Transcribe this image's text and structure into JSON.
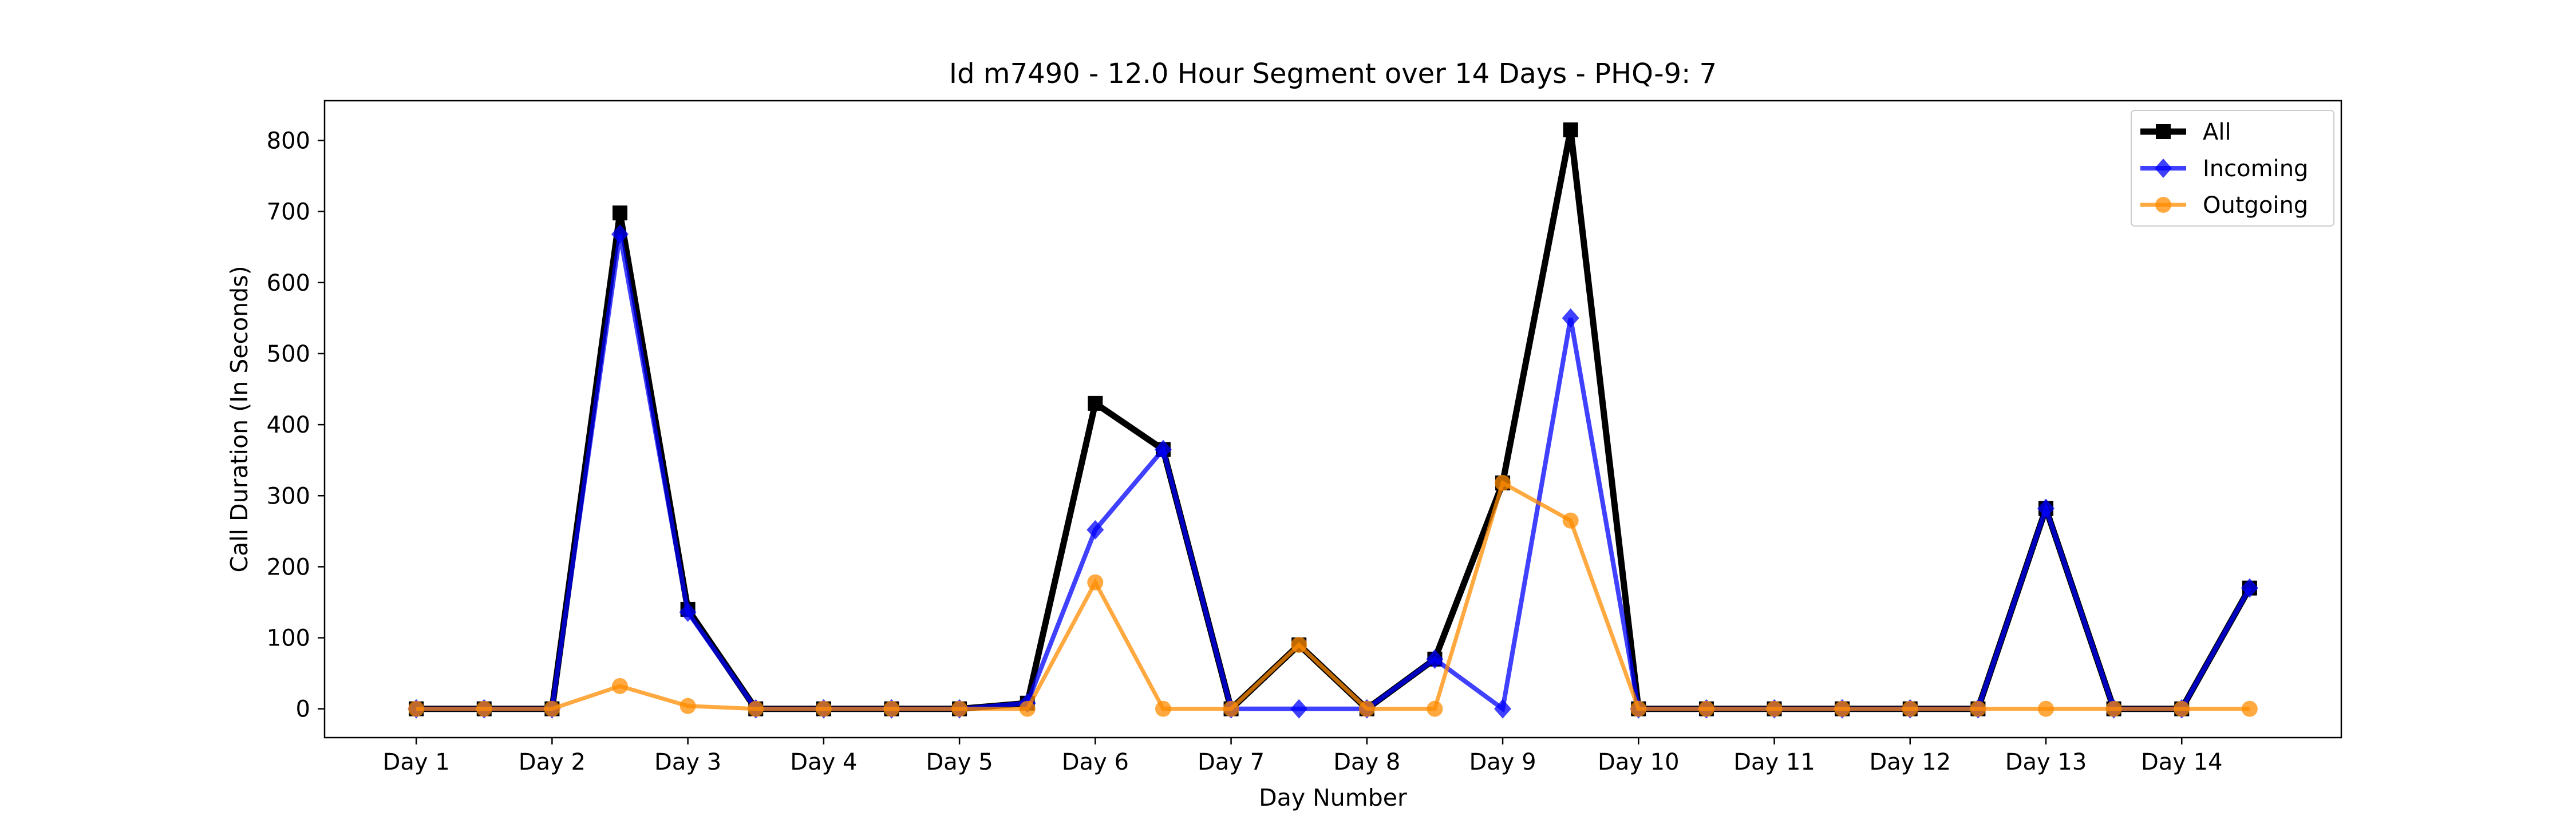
{
  "chart_data": {
    "type": "line",
    "title": "Id m7490 - 12.0 Hour Segment over 14 Days - PHQ-9: 7",
    "xlabel": "Day Number",
    "ylabel": "Call Duration (In Seconds)",
    "x": [
      1,
      1.5,
      2,
      2.5,
      3,
      3.5,
      4,
      4.5,
      5,
      5.5,
      6,
      6.5,
      7,
      7.5,
      8,
      8.5,
      9,
      9.5,
      10,
      10.5,
      11,
      11.5,
      12,
      12.5,
      13,
      13.5,
      14,
      14.5
    ],
    "xlim": [
      0.325,
      15.175
    ],
    "ylim": [
      -40.5,
      856
    ],
    "x_ticks": [
      {
        "value": 1,
        "label": "Day 1"
      },
      {
        "value": 2,
        "label": "Day 2"
      },
      {
        "value": 3,
        "label": "Day 3"
      },
      {
        "value": 4,
        "label": "Day 4"
      },
      {
        "value": 5,
        "label": "Day 5"
      },
      {
        "value": 6,
        "label": "Day 6"
      },
      {
        "value": 7,
        "label": "Day 7"
      },
      {
        "value": 8,
        "label": "Day 8"
      },
      {
        "value": 9,
        "label": "Day 9"
      },
      {
        "value": 10,
        "label": "Day 10"
      },
      {
        "value": 11,
        "label": "Day 11"
      },
      {
        "value": 12,
        "label": "Day 12"
      },
      {
        "value": 13,
        "label": "Day 13"
      },
      {
        "value": 14,
        "label": "Day 14"
      }
    ],
    "y_ticks": [
      {
        "value": 0,
        "label": "0"
      },
      {
        "value": 100,
        "label": "100"
      },
      {
        "value": 200,
        "label": "200"
      },
      {
        "value": 300,
        "label": "300"
      },
      {
        "value": 400,
        "label": "400"
      },
      {
        "value": 500,
        "label": "500"
      },
      {
        "value": 600,
        "label": "600"
      },
      {
        "value": 700,
        "label": "700"
      },
      {
        "value": 800,
        "label": "800"
      }
    ],
    "grid": false,
    "legend_position": "top-right",
    "series": [
      {
        "name": "All",
        "color": "#000000",
        "marker": "square",
        "opacity": 1,
        "values": [
          0,
          0,
          0,
          698,
          140,
          0,
          0,
          0,
          0,
          8,
          430,
          365,
          0,
          90,
          0,
          70,
          318,
          815,
          0,
          0,
          0,
          0,
          0,
          0,
          282,
          0,
          0,
          170
        ]
      },
      {
        "name": "Incoming",
        "color": "#0000ff",
        "marker": "diamond",
        "opacity": 0.75,
        "values": [
          0,
          0,
          0,
          668,
          136,
          0,
          0,
          0,
          0,
          8,
          252,
          365,
          0,
          0,
          0,
          70,
          0,
          550,
          0,
          0,
          0,
          0,
          0,
          0,
          282,
          0,
          0,
          170
        ]
      },
      {
        "name": "Outgoing",
        "color": "#ff8c00",
        "marker": "circle",
        "opacity": 0.75,
        "values": [
          0,
          0,
          0,
          32,
          4,
          0,
          0,
          0,
          0,
          0,
          178,
          0,
          0,
          90,
          0,
          0,
          318,
          265,
          0,
          0,
          0,
          0,
          0,
          0,
          0,
          0,
          0,
          0
        ]
      }
    ]
  }
}
